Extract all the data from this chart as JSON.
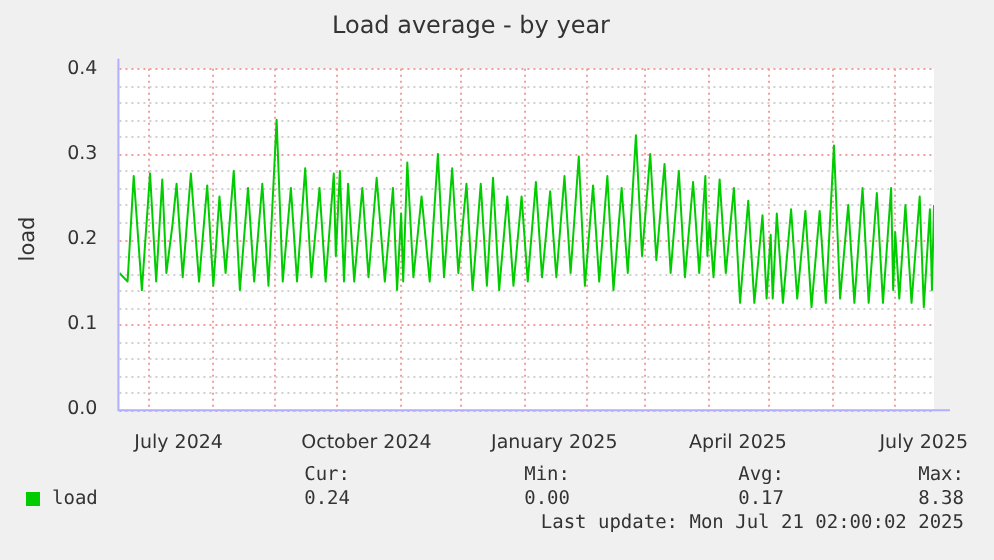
{
  "chart_data": {
    "type": "line",
    "title": "Load average - by year",
    "ylabel": "load",
    "xlim": [
      "2024-06-17",
      "2025-07-21"
    ],
    "xticks": [
      {
        "value": "2024-07-01",
        "label": null
      },
      {
        "value": "2024-07-16",
        "label": "July 2024"
      },
      {
        "value": "2024-08-01",
        "label": null
      },
      {
        "value": "2024-09-01",
        "label": null
      },
      {
        "value": "2024-10-01",
        "label": null
      },
      {
        "value": "2024-10-16",
        "label": "October 2024"
      },
      {
        "value": "2024-11-01",
        "label": null
      },
      {
        "value": "2024-12-01",
        "label": null
      },
      {
        "value": "2025-01-01",
        "label": null
      },
      {
        "value": "2025-01-16",
        "label": "January 2025"
      },
      {
        "value": "2025-02-01",
        "label": null
      },
      {
        "value": "2025-03-01",
        "label": null
      },
      {
        "value": "2025-04-01",
        "label": null
      },
      {
        "value": "2025-04-16",
        "label": "April 2025"
      },
      {
        "value": "2025-05-01",
        "label": null
      },
      {
        "value": "2025-06-01",
        "label": null
      },
      {
        "value": "2025-07-01",
        "label": null
      },
      {
        "value": "2025-07-16",
        "label": "July 2025"
      }
    ],
    "ylim": [
      0,
      0.4
    ],
    "yticks": [
      {
        "value": 0,
        "label": "0.0"
      },
      {
        "value": 0.02,
        "label": null
      },
      {
        "value": 0.04,
        "label": null
      },
      {
        "value": 0.06,
        "label": null
      },
      {
        "value": 0.08,
        "label": null
      },
      {
        "value": 0.1,
        "label": "0.1"
      },
      {
        "value": 0.12,
        "label": null
      },
      {
        "value": 0.14,
        "label": null
      },
      {
        "value": 0.16,
        "label": null
      },
      {
        "value": 0.18,
        "label": null
      },
      {
        "value": 0.2,
        "label": "0.2"
      },
      {
        "value": 0.22,
        "label": null
      },
      {
        "value": 0.24,
        "label": null
      },
      {
        "value": 0.26,
        "label": null
      },
      {
        "value": 0.28,
        "label": null
      },
      {
        "value": 0.3,
        "label": "0.3"
      },
      {
        "value": 0.32,
        "label": null
      },
      {
        "value": 0.34,
        "label": null
      },
      {
        "value": 0.36,
        "label": null
      },
      {
        "value": 0.38,
        "label": null
      },
      {
        "value": 0.4,
        "label": "0.4"
      }
    ],
    "grid": true,
    "legend": "bottom left",
    "marker": "none",
    "line_style": "solid",
    "annotations": [
      "Cur:",
      "Min:",
      "Avg:",
      "Max:",
      "0.24",
      "0.00",
      "0.17",
      "8.38",
      "Last update: Mon Jul 21 02:00:02 2025"
    ],
    "series": [
      {
        "name": "load",
        "color": "#00cc00",
        "x": [
          "2024-06-17",
          "2024-06-21",
          "2024-06-24",
          "2024-06-28",
          "2024-07-02",
          "2024-07-05",
          "2024-07-08",
          "2024-07-10",
          "2024-07-13",
          "2024-07-15",
          "2024-07-18",
          "2024-07-22",
          "2024-07-26",
          "2024-07-30",
          "2024-08-02",
          "2024-08-05",
          "2024-08-08",
          "2024-08-12",
          "2024-08-15",
          "2024-08-19",
          "2024-08-22",
          "2024-08-26",
          "2024-08-29",
          "2024-09-02",
          "2024-09-05",
          "2024-09-09",
          "2024-09-12",
          "2024-09-16",
          "2024-09-19",
          "2024-09-23",
          "2024-09-26",
          "2024-09-30",
          "2024-10-01",
          "2024-10-03",
          "2024-10-05",
          "2024-10-07",
          "2024-10-10",
          "2024-10-14",
          "2024-10-17",
          "2024-10-21",
          "2024-10-25",
          "2024-10-29",
          "2024-10-31",
          "2024-11-02",
          "2024-11-03",
          "2024-11-05",
          "2024-11-08",
          "2024-11-12",
          "2024-11-16",
          "2024-11-20",
          "2024-11-23",
          "2024-11-27",
          "2024-11-30",
          "2024-12-04",
          "2024-12-07",
          "2024-12-11",
          "2024-12-14",
          "2024-12-17",
          "2024-12-20",
          "2024-12-24",
          "2024-12-27",
          "2024-12-31",
          "2025-01-03",
          "2025-01-07",
          "2025-01-10",
          "2025-01-14",
          "2025-01-17",
          "2025-01-21",
          "2025-01-24",
          "2025-01-28",
          "2025-01-31",
          "2025-02-04",
          "2025-02-07",
          "2025-02-11",
          "2025-02-14",
          "2025-02-18",
          "2025-02-21",
          "2025-02-25",
          "2025-02-28",
          "2025-03-04",
          "2025-03-07",
          "2025-03-11",
          "2025-03-14",
          "2025-03-18",
          "2025-03-21",
          "2025-03-25",
          "2025-03-28",
          "2025-03-31",
          "2025-04-01",
          "2025-04-02",
          "2025-04-04",
          "2025-04-07",
          "2025-04-10",
          "2025-04-14",
          "2025-04-17",
          "2025-04-21",
          "2025-04-24",
          "2025-04-28",
          "2025-04-30",
          "2025-05-02",
          "2025-05-03",
          "2025-05-05",
          "2025-05-08",
          "2025-05-12",
          "2025-05-15",
          "2025-05-19",
          "2025-05-22",
          "2025-05-26",
          "2025-05-29",
          "2025-06-02",
          "2025-06-05",
          "2025-06-09",
          "2025-06-12",
          "2025-06-16",
          "2025-06-19",
          "2025-06-23",
          "2025-06-26",
          "2025-06-30",
          "2025-07-01",
          "2025-07-02",
          "2025-07-04",
          "2025-07-07",
          "2025-07-10",
          "2025-07-14",
          "2025-07-16",
          "2025-07-19",
          "2025-07-20",
          "2025-07-21"
        ],
        "values": [
          0.16,
          0.15,
          0.274,
          0.14,
          0.277,
          0.15,
          0.27,
          0.16,
          0.217,
          0.265,
          0.155,
          0.277,
          0.15,
          0.263,
          0.145,
          0.25,
          0.16,
          0.28,
          0.14,
          0.26,
          0.15,
          0.265,
          0.145,
          0.34,
          0.15,
          0.26,
          0.15,
          0.283,
          0.155,
          0.26,
          0.15,
          0.277,
          0.18,
          0.28,
          0.15,
          0.265,
          0.15,
          0.26,
          0.155,
          0.272,
          0.15,
          0.26,
          0.14,
          0.23,
          0.15,
          0.29,
          0.155,
          0.25,
          0.15,
          0.3,
          0.155,
          0.283,
          0.16,
          0.265,
          0.14,
          0.265,
          0.145,
          0.272,
          0.14,
          0.25,
          0.145,
          0.25,
          0.15,
          0.267,
          0.155,
          0.256,
          0.155,
          0.274,
          0.16,
          0.297,
          0.145,
          0.263,
          0.15,
          0.274,
          0.14,
          0.26,
          0.16,
          0.322,
          0.18,
          0.3,
          0.175,
          0.288,
          0.16,
          0.28,
          0.155,
          0.267,
          0.16,
          0.274,
          0.18,
          0.22,
          0.155,
          0.27,
          0.16,
          0.26,
          0.125,
          0.245,
          0.125,
          0.228,
          0.13,
          0.205,
          0.13,
          0.23,
          0.125,
          0.235,
          0.13,
          0.233,
          0.12,
          0.233,
          0.125,
          0.31,
          0.13,
          0.24,
          0.125,
          0.26,
          0.125,
          0.254,
          0.125,
          0.26,
          0.14,
          0.208,
          0.13,
          0.24,
          0.125,
          0.25,
          0.12,
          0.235,
          0.14,
          0.24
        ]
      }
    ]
  }
}
